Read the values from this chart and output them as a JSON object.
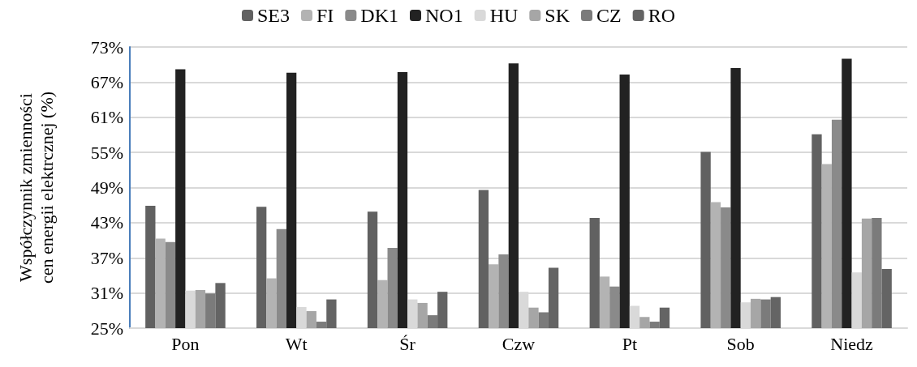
{
  "chart_data": {
    "type": "bar",
    "ylabel": "Współczynnik zmienności\ncen energii elektrcznej (%)",
    "categories": [
      "Pon",
      "Wt",
      "Śr",
      "Czw",
      "Pt",
      "Sob",
      "Niedz"
    ],
    "series": [
      {
        "name": "SE3",
        "color": "#616161",
        "values": [
          45.9,
          45.7,
          44.9,
          48.6,
          43.8,
          55.1,
          58.1
        ]
      },
      {
        "name": "FI",
        "color": "#b3b3b3",
        "values": [
          40.3,
          33.5,
          33.2,
          35.9,
          33.8,
          46.5,
          53.0
        ]
      },
      {
        "name": "DK1",
        "color": "#8a8a8a",
        "values": [
          39.7,
          41.9,
          38.7,
          37.6,
          32.1,
          45.6,
          60.6
        ]
      },
      {
        "name": "NO1",
        "color": "#222222",
        "values": [
          69.2,
          68.6,
          68.7,
          70.2,
          68.3,
          69.4,
          71.0
        ]
      },
      {
        "name": "HU",
        "color": "#d9d9d9",
        "values": [
          31.4,
          28.6,
          29.9,
          31.2,
          28.8,
          29.4,
          34.5
        ]
      },
      {
        "name": "SK",
        "color": "#a6a6a6",
        "values": [
          31.5,
          27.9,
          29.3,
          28.5,
          26.9,
          30.0,
          43.7
        ]
      },
      {
        "name": "CZ",
        "color": "#7b7b7b",
        "values": [
          30.9,
          26.1,
          27.2,
          27.7,
          26.1,
          29.9,
          43.8
        ]
      },
      {
        "name": "RO",
        "color": "#646464",
        "values": [
          32.7,
          29.9,
          31.2,
          35.3,
          28.5,
          30.3,
          35.1
        ]
      }
    ],
    "ylim": [
      25,
      73
    ],
    "yticks": [
      {
        "value": 25,
        "label": "25%"
      },
      {
        "value": 31,
        "label": "31%"
      },
      {
        "value": 37,
        "label": "37%"
      },
      {
        "value": 43,
        "label": "43%"
      },
      {
        "value": 49,
        "label": "49%"
      },
      {
        "value": 55,
        "label": "55%"
      },
      {
        "value": 61,
        "label": "61%"
      },
      {
        "value": 67,
        "label": "67%"
      },
      {
        "value": 73,
        "label": "73%"
      }
    ],
    "grid": "y",
    "legend": "top"
  }
}
